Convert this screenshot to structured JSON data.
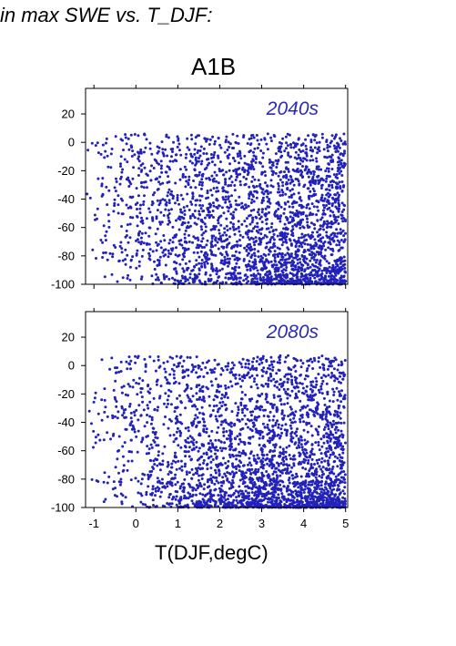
{
  "header": {
    "text": "in max SWE vs. T_DJF:"
  },
  "scenario_title": "A1B",
  "colors": {
    "points": "#2222bb",
    "panel_label": "#2a2ab8",
    "axis": "#000000"
  },
  "chart_data": [
    {
      "type": "scatter",
      "panel_label": "2040s",
      "xlim": [
        -1.2,
        5.05
      ],
      "ylim": [
        -100,
        38
      ],
      "yticks": [
        20,
        0,
        -20,
        -40,
        -60,
        -80,
        -100
      ],
      "xticks": [
        -1,
        0,
        1,
        2,
        3,
        4,
        5
      ],
      "xtick_labels_shown": false,
      "grid": false,
      "points_description": "dense cloud; x from about -1.2 to 5; y from -100 to about 6; density increases toward high T and low y",
      "generator": {
        "seed": 2040,
        "n": 2600,
        "x_min": -1.2,
        "x_max": 5.0,
        "y_min": -100,
        "y_max": 6,
        "skew": 0.35
      }
    },
    {
      "type": "scatter",
      "panel_label": "2080s",
      "xlim": [
        -1.2,
        5.05
      ],
      "ylim": [
        -100,
        38
      ],
      "yticks": [
        20,
        0,
        -20,
        -40,
        -60,
        -80,
        -100
      ],
      "xticks": [
        -1,
        0,
        1,
        2,
        3,
        4,
        5
      ],
      "xtick_labels": [
        "-1",
        "0",
        "1",
        "2",
        "3",
        "4",
        "5"
      ],
      "xtick_labels_shown": true,
      "grid": false,
      "points_description": "dense cloud; x from about -1.2 to 5; y from -100 to about 7; heavy concentration near y=-100 at high T",
      "generator": {
        "seed": 2080,
        "n": 2800,
        "x_min": -1.2,
        "x_max": 5.0,
        "y_min": -100,
        "y_max": 7,
        "skew": 0.55
      }
    }
  ],
  "xlabel": "T(DJF,degC)"
}
